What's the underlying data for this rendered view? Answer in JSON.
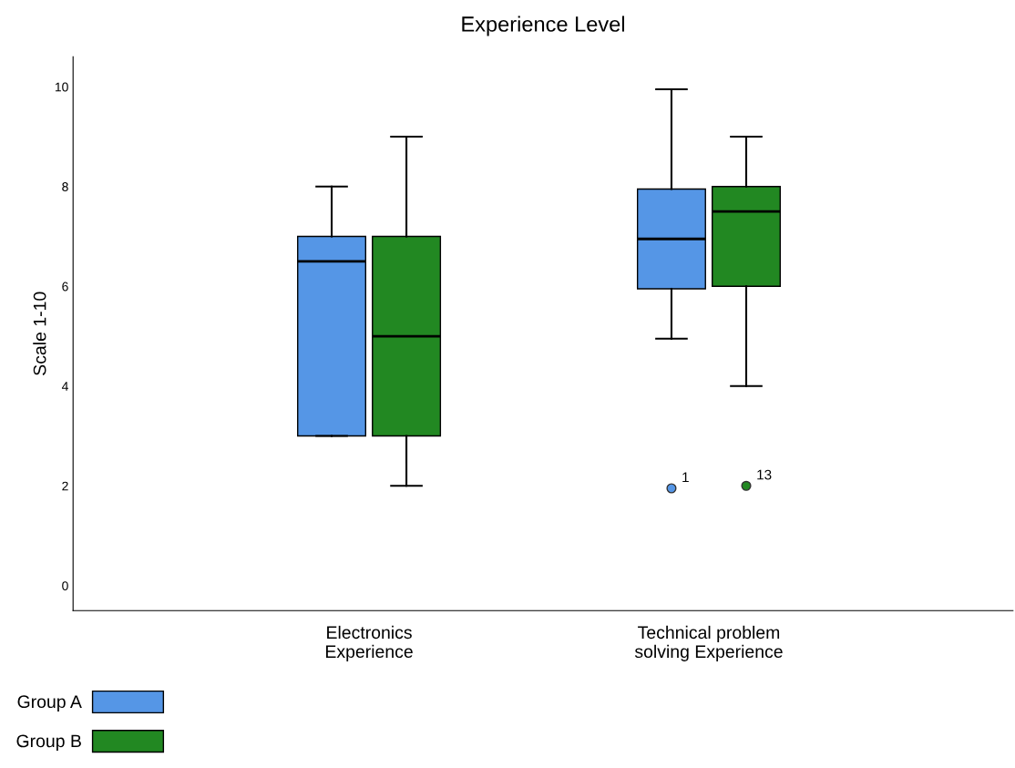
{
  "chart_data": {
    "type": "box",
    "title": "Experience Level",
    "ylabel": "Scale 1-10",
    "categories": [
      "Electronics\nExperience",
      "Technical problem\nsolving Experience"
    ],
    "ylim": [
      -0.5,
      10.6
    ],
    "yticks": [
      0,
      2,
      4,
      6,
      8,
      10
    ],
    "grid": false,
    "legend": "bottom left",
    "series": [
      {
        "name": "Group A",
        "color": "#5596e6",
        "boxes": [
          {
            "low": 3,
            "q1": 3,
            "median": 6.5,
            "q3": 7,
            "high": 8
          },
          {
            "low": 4.95,
            "q1": 5.95,
            "median": 6.95,
            "q3": 7.95,
            "high": 9.95,
            "outliers": [
              1.95
            ]
          }
        ]
      },
      {
        "name": "Group B",
        "color": "#228822",
        "boxes": [
          {
            "low": 2,
            "q1": 3,
            "median": 5,
            "q3": 7,
            "high": 9
          },
          {
            "low": 4,
            "q1": 6,
            "median": 7.5,
            "q3": 8,
            "high": 9,
            "outliers": [
              2
            ]
          }
        ]
      }
    ],
    "annotations": [
      "1",
      "13"
    ]
  }
}
